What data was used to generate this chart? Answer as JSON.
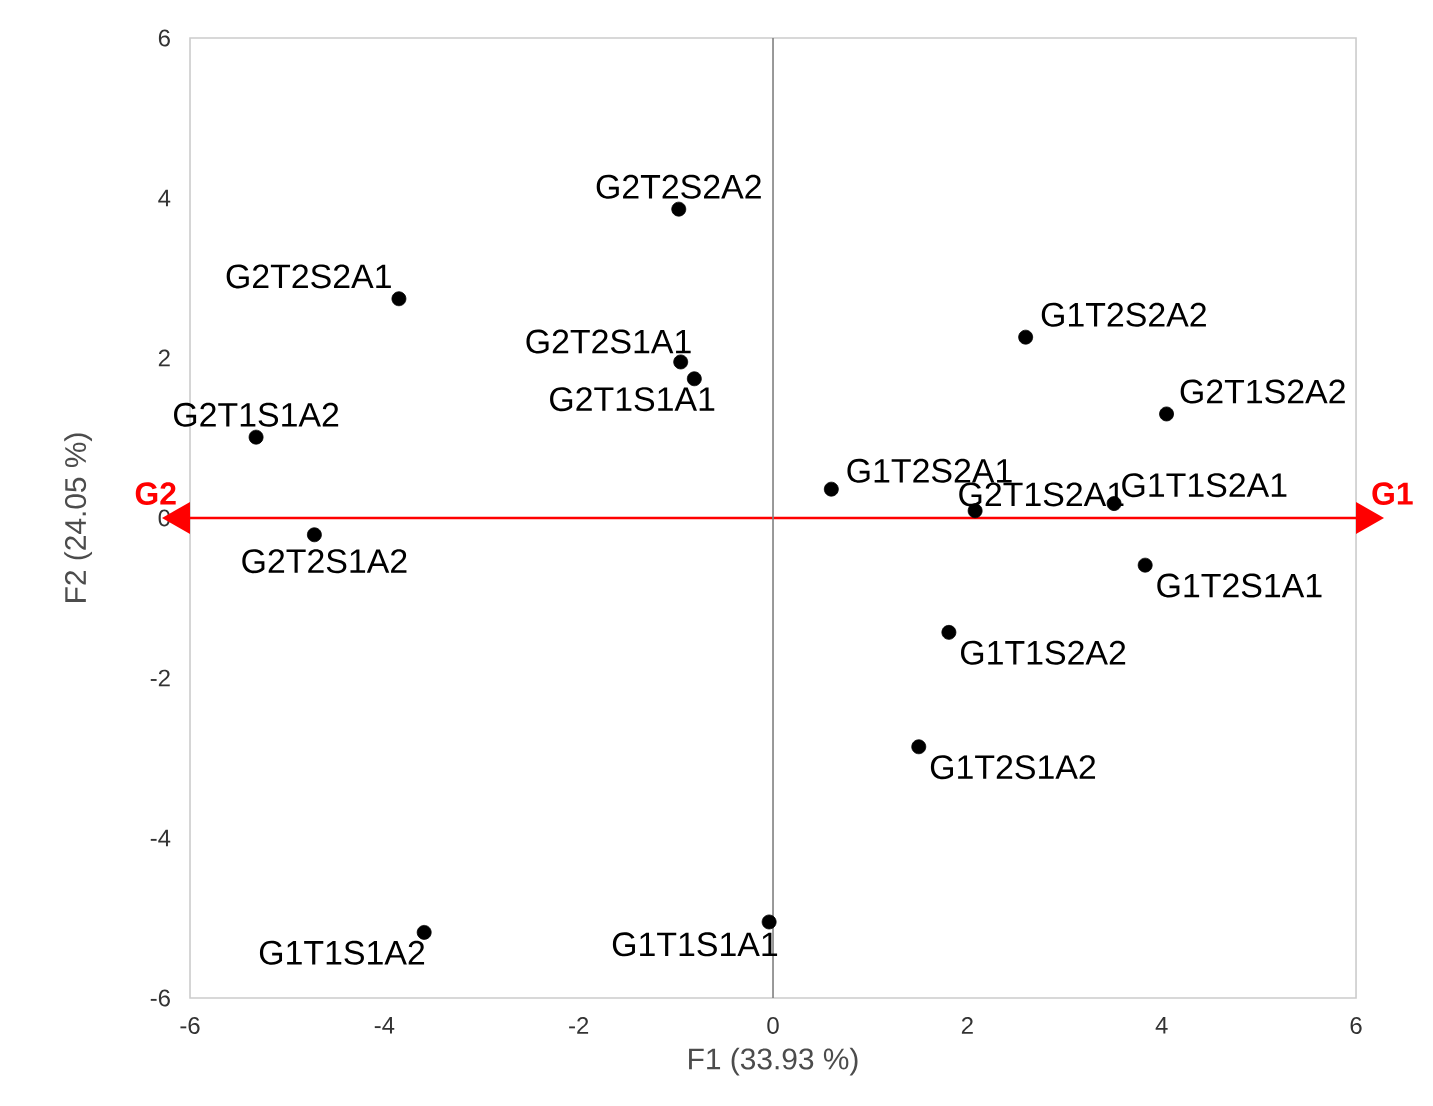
{
  "chart_data": {
    "type": "scatter",
    "xlabel": "F1 (33.93 %)",
    "ylabel": "F2 (24.05 %)",
    "xlim": [
      -6,
      6
    ],
    "ylim": [
      -6,
      6
    ],
    "xticks": [
      -6,
      -4,
      -2,
      0,
      2,
      4,
      6
    ],
    "yticks": [
      -6,
      -4,
      -2,
      0,
      2,
      4,
      6
    ],
    "x": [
      -0.97,
      -3.85,
      -0.95,
      -0.81,
      -5.32,
      -4.72,
      2.6,
      4.05,
      0.6,
      2.08,
      3.51,
      3.83,
      1.81,
      1.5,
      -3.59,
      -0.04
    ],
    "values": [
      3.86,
      2.74,
      1.95,
      1.74,
      1.01,
      -0.21,
      2.26,
      1.3,
      0.36,
      0.09,
      0.18,
      -0.59,
      -1.43,
      -2.86,
      -5.18,
      -5.05
    ],
    "color": "#000000",
    "value_labels": [
      "G2T2S2A2",
      "G2T2S2A1",
      "G2T2S1A1",
      "G2T1S1A1",
      "G2T1S1A2",
      "G2T2S1A2",
      "G1T2S2A2",
      "G2T1S2A2",
      "G1T2S2A1",
      "G2T1S2A1",
      "G1T1S2A1",
      "G1T2S1A1",
      "G1T1S2A2",
      "G1T2S1A2",
      "G1T1S1A2",
      "G1T1S1A1"
    ],
    "ref_lines": [
      {
        "axis": "y",
        "value": 0,
        "color": "#ff0000"
      },
      {
        "axis": "x",
        "value": 0,
        "color": "#808080"
      }
    ],
    "annotations": [
      "G2",
      "G1"
    ]
  }
}
